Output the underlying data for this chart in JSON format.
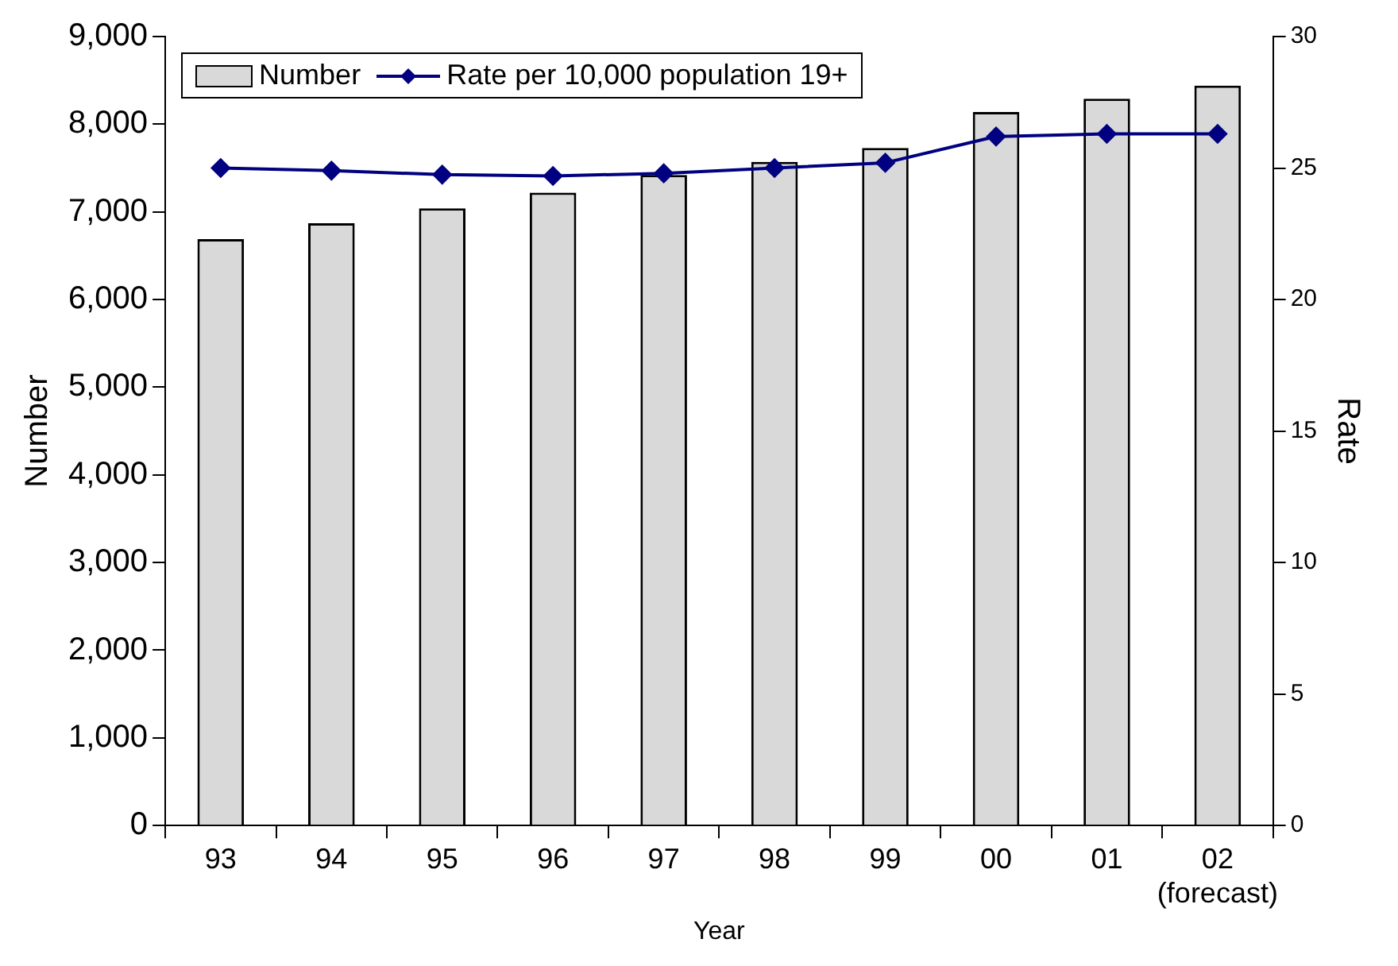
{
  "chart_data": {
    "type": "bar",
    "xlabel": "Year",
    "ylabel": "Number",
    "y2label": "Rate",
    "categories": [
      "93",
      "94",
      "95",
      "96",
      "97",
      "98",
      "99",
      "00",
      "01",
      "02\n(forecast)"
    ],
    "series": [
      {
        "name": "Number",
        "color": "#d9d9d9",
        "values": [
          6690,
          6870,
          7040,
          7220,
          7420,
          7570,
          7730,
          8140,
          8290,
          8440
        ]
      },
      {
        "name": "Rate per 10,000 population 19+",
        "type": "line",
        "axis": "y2",
        "color": "#000080",
        "marker": "diamond",
        "values": [
          25.0,
          24.9,
          24.75,
          24.7,
          24.8,
          25.0,
          25.2,
          26.2,
          26.3,
          26.3
        ]
      }
    ],
    "ylim": [
      0,
      9000
    ],
    "yticks": [
      {
        "value": 0,
        "label": "0"
      },
      {
        "value": 1000,
        "label": "1,000"
      },
      {
        "value": 2000,
        "label": "2,000"
      },
      {
        "value": 3000,
        "label": "3,000"
      },
      {
        "value": 4000,
        "label": "4,000"
      },
      {
        "value": 5000,
        "label": "5,000"
      },
      {
        "value": 6000,
        "label": "6,000"
      },
      {
        "value": 7000,
        "label": "7,000"
      },
      {
        "value": 8000,
        "label": "8,000"
      },
      {
        "value": 9000,
        "label": "9,000"
      }
    ],
    "y2lim": [
      0,
      30
    ],
    "y2ticks": [
      0,
      5,
      10,
      15,
      20,
      25,
      30
    ],
    "grid": false,
    "legend": "top left"
  }
}
